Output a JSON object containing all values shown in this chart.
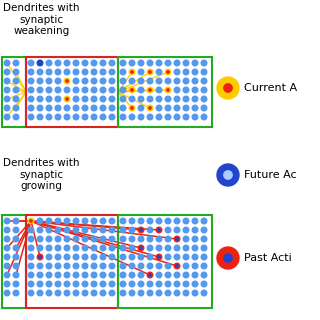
{
  "bg_color": "#ffffff",
  "dot_color_blue": "#5599ee",
  "dot_color_yellow": "#ffcc00",
  "dot_color_red": "#ee2211",
  "dot_color_dark_blue": "#2244cc",
  "dot_color_light_blue": "#aaccff",
  "line_color_yellow": "#ffcc00",
  "line_color_red": "#ee2211",
  "box_green": "#22aa22",
  "box_red": "#dd2222",
  "title1": "Dendrites with\nsynaptic\nweakening",
  "title2": "Dendrites with\nsynaptic\ngrowing",
  "legend_labels": [
    "Current A",
    "Future Ac",
    "Past Acti"
  ]
}
